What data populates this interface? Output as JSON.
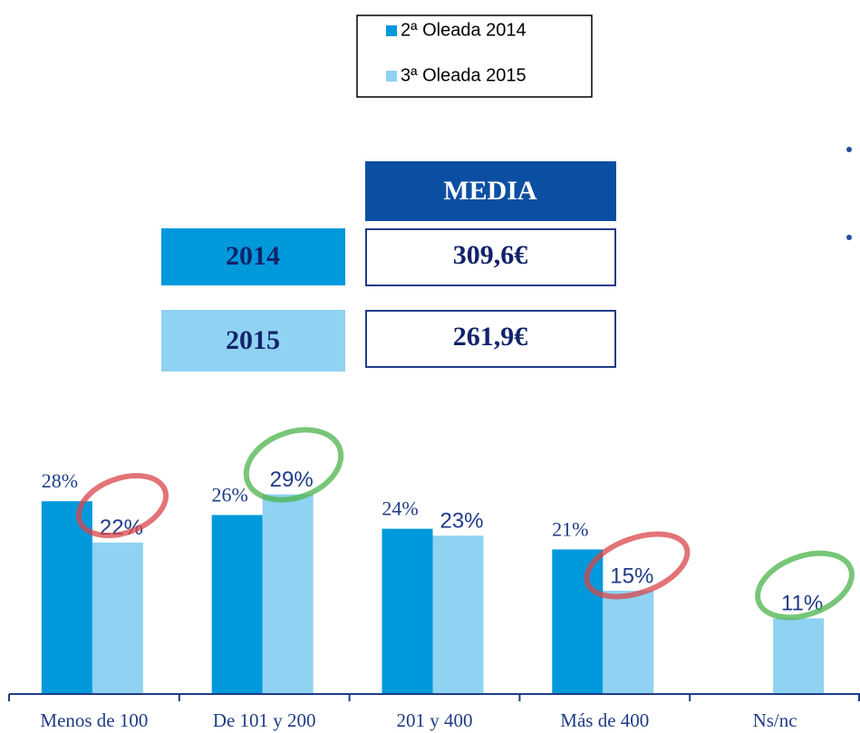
{
  "chart_data": {
    "type": "bar",
    "categories": [
      "Menos de 100",
      "De 101 y 200",
      "201 y 400",
      "Más de 400",
      "Ns/nc"
    ],
    "series": [
      {
        "name": "2ª Oleada 2014",
        "color": "#0099dc",
        "values": [
          28,
          26,
          24,
          21,
          null
        ],
        "value_labels": [
          "28%",
          "26%",
          "24%",
          "21%",
          null
        ]
      },
      {
        "name": "3ª Oleada 2015",
        "color": "#8fd2f1",
        "values": [
          22,
          29,
          23,
          15,
          11
        ],
        "value_labels": [
          "22%",
          "29%",
          "23%",
          "15%",
          "11%"
        ]
      }
    ],
    "legend": "top"
  },
  "media_table": {
    "header": "MEDIA",
    "rows": [
      [
        "2014",
        "309,6€"
      ],
      [
        "2015",
        "261,9€"
      ]
    ]
  }
}
